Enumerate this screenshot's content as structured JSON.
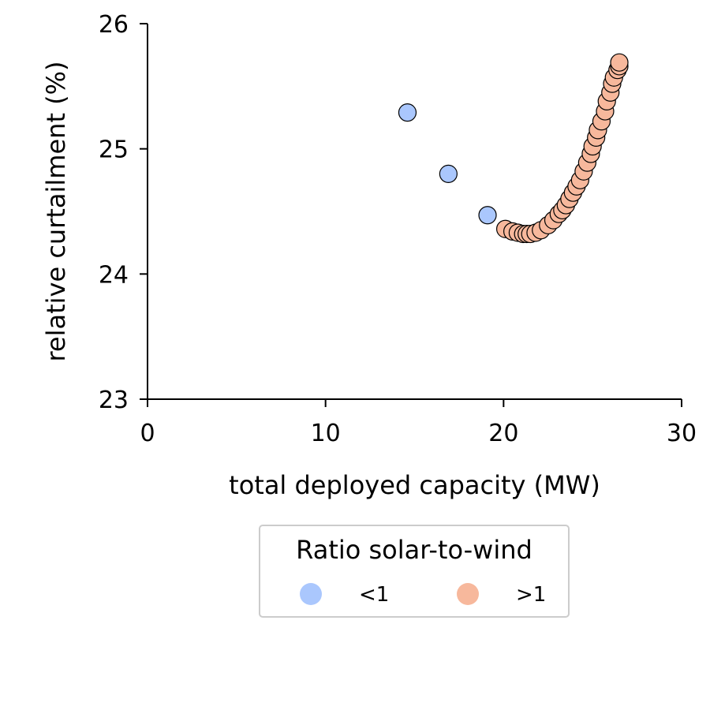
{
  "chart_data": {
    "type": "scatter",
    "xlabel": "total deployed capacity (MW)",
    "ylabel": "relative curtailment (%)",
    "xlim": [
      0,
      30
    ],
    "ylim": [
      23,
      26
    ],
    "x_ticks": [
      "0",
      "10",
      "20",
      "30"
    ],
    "y_ticks": [
      "23",
      "24",
      "25",
      "26"
    ],
    "grid": false,
    "legend": {
      "title": "Ratio solar-to-wind",
      "placement": "bottom-center",
      "entries": [
        {
          "label": "<1",
          "color": "#aac7fd"
        },
        {
          "label": ">1",
          "color": "#f7b89c"
        }
      ]
    },
    "series": [
      {
        "name": "<1",
        "color": "#aac7fd",
        "points": [
          {
            "x": 14.6,
            "y": 25.29
          },
          {
            "x": 16.9,
            "y": 24.8
          },
          {
            "x": 19.1,
            "y": 24.47
          }
        ]
      },
      {
        "name": ">1",
        "color": "#f7b89c",
        "points": [
          {
            "x": 20.1,
            "y": 24.36
          },
          {
            "x": 20.5,
            "y": 24.34
          },
          {
            "x": 20.8,
            "y": 24.33
          },
          {
            "x": 21.1,
            "y": 24.32
          },
          {
            "x": 21.3,
            "y": 24.32
          },
          {
            "x": 21.5,
            "y": 24.32
          },
          {
            "x": 21.8,
            "y": 24.33
          },
          {
            "x": 22.1,
            "y": 24.35
          },
          {
            "x": 22.5,
            "y": 24.39
          },
          {
            "x": 22.8,
            "y": 24.43
          },
          {
            "x": 23.1,
            "y": 24.48
          },
          {
            "x": 23.3,
            "y": 24.51
          },
          {
            "x": 23.5,
            "y": 24.55
          },
          {
            "x": 23.7,
            "y": 24.6
          },
          {
            "x": 23.9,
            "y": 24.65
          },
          {
            "x": 24.1,
            "y": 24.7
          },
          {
            "x": 24.3,
            "y": 24.75
          },
          {
            "x": 24.5,
            "y": 24.82
          },
          {
            "x": 24.7,
            "y": 24.89
          },
          {
            "x": 24.9,
            "y": 24.96
          },
          {
            "x": 25.0,
            "y": 25.02
          },
          {
            "x": 25.2,
            "y": 25.09
          },
          {
            "x": 25.3,
            "y": 25.15
          },
          {
            "x": 25.5,
            "y": 25.22
          },
          {
            "x": 25.7,
            "y": 25.3
          },
          {
            "x": 25.8,
            "y": 25.38
          },
          {
            "x": 26.0,
            "y": 25.45
          },
          {
            "x": 26.1,
            "y": 25.52
          },
          {
            "x": 26.2,
            "y": 25.57
          },
          {
            "x": 26.4,
            "y": 25.63
          },
          {
            "x": 26.5,
            "y": 25.66
          },
          {
            "x": 26.5,
            "y": 25.69
          }
        ]
      }
    ]
  }
}
